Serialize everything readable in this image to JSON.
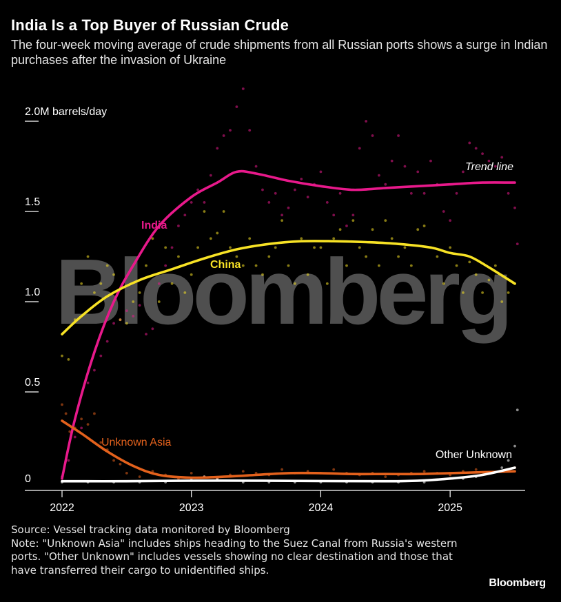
{
  "header": {
    "title": "India Is a Top Buyer of Russian Crude",
    "subtitle": "The four-week moving average of crude shipments from all Russian ports shows a surge in Indian purchases after the invasion of Ukraine"
  },
  "watermark": "Bloomberg",
  "footer": {
    "source": "Source: Vessel tracking data monitored by Bloomberg",
    "note": "Note: \"Unknown Asia\" includes ships heading to the Suez Canal from Russia's western ports. \"Other Unknown\" includes vessels showing no clear destination and those that have transferred their cargo to unidentified ships.",
    "brand": "Bloomberg"
  },
  "chart_data": {
    "type": "scatter",
    "unit": "M barrels/day",
    "xlim": [
      2022.0,
      2025.62
    ],
    "ylim": [
      0,
      2.0
    ],
    "x_ticks": [
      {
        "value": 2022,
        "label": "2022"
      },
      {
        "value": 2023,
        "label": "2023"
      },
      {
        "value": 2024,
        "label": "2024"
      },
      {
        "value": 2025,
        "label": "2025"
      }
    ],
    "y_ticks": [
      {
        "value": 0,
        "label": "0"
      },
      {
        "value": 0.5,
        "label": "0.5"
      },
      {
        "value": 1.0,
        "label": "1.0"
      },
      {
        "value": 1.5,
        "label": "1.5"
      },
      {
        "value": 2.0,
        "label": "2.0M barrels/day"
      }
    ],
    "trend_label": "Trend line",
    "series": [
      {
        "name": "India",
        "color": "#e8198b",
        "trend": [
          [
            2022.0,
            0.02
          ],
          [
            2022.1,
            0.35
          ],
          [
            2022.25,
            0.72
          ],
          [
            2022.4,
            1.0
          ],
          [
            2022.55,
            1.2
          ],
          [
            2022.75,
            1.42
          ],
          [
            2023.0,
            1.58
          ],
          [
            2023.2,
            1.66
          ],
          [
            2023.35,
            1.72
          ],
          [
            2023.5,
            1.71
          ],
          [
            2023.75,
            1.67
          ],
          [
            2024.0,
            1.64
          ],
          [
            2024.25,
            1.62
          ],
          [
            2024.5,
            1.63
          ],
          [
            2024.75,
            1.64
          ],
          [
            2025.0,
            1.65
          ],
          [
            2025.25,
            1.66
          ],
          [
            2025.5,
            1.66
          ]
        ],
        "points": [
          [
            2022.0,
            0.03
          ],
          [
            2022.05,
            0.12
          ],
          [
            2022.1,
            0.25
          ],
          [
            2022.15,
            0.3
          ],
          [
            2022.2,
            0.55
          ],
          [
            2022.25,
            0.62
          ],
          [
            2022.3,
            0.7
          ],
          [
            2022.35,
            0.78
          ],
          [
            2022.4,
            0.88
          ],
          [
            2022.45,
            0.9
          ],
          [
            2022.5,
            0.95
          ],
          [
            2022.55,
            0.92
          ],
          [
            2022.6,
            0.98
          ],
          [
            2022.65,
            0.82
          ],
          [
            2022.7,
            0.85
          ],
          [
            2022.75,
            1.1
          ],
          [
            2022.8,
            1.2
          ],
          [
            2022.85,
            1.3
          ],
          [
            2022.9,
            1.42
          ],
          [
            2022.95,
            1.48
          ],
          [
            2023.0,
            1.55
          ],
          [
            2023.05,
            1.62
          ],
          [
            2023.1,
            1.55
          ],
          [
            2023.15,
            1.7
          ],
          [
            2023.2,
            1.85
          ],
          [
            2023.25,
            1.92
          ],
          [
            2023.3,
            1.95
          ],
          [
            2023.35,
            2.08
          ],
          [
            2023.4,
            2.18
          ],
          [
            2023.45,
            1.95
          ],
          [
            2023.5,
            1.75
          ],
          [
            2023.55,
            1.62
          ],
          [
            2023.6,
            1.55
          ],
          [
            2023.65,
            1.6
          ],
          [
            2023.7,
            1.48
          ],
          [
            2023.75,
            1.52
          ],
          [
            2023.8,
            1.62
          ],
          [
            2023.85,
            1.68
          ],
          [
            2023.9,
            1.58
          ],
          [
            2023.95,
            1.65
          ],
          [
            2024.0,
            1.72
          ],
          [
            2024.05,
            1.55
          ],
          [
            2024.1,
            1.48
          ],
          [
            2024.15,
            1.6
          ],
          [
            2024.2,
            1.42
          ],
          [
            2024.25,
            1.48
          ],
          [
            2024.3,
            1.85
          ],
          [
            2024.35,
            2.0
          ],
          [
            2024.4,
            1.92
          ],
          [
            2024.45,
            1.7
          ],
          [
            2024.5,
            1.65
          ],
          [
            2024.55,
            1.78
          ],
          [
            2024.6,
            1.92
          ],
          [
            2024.65,
            1.75
          ],
          [
            2024.7,
            1.6
          ],
          [
            2024.75,
            1.72
          ],
          [
            2024.8,
            1.6
          ],
          [
            2024.85,
            1.78
          ],
          [
            2024.9,
            1.65
          ],
          [
            2024.95,
            1.5
          ],
          [
            2025.0,
            1.45
          ],
          [
            2025.05,
            1.6
          ],
          [
            2025.1,
            1.72
          ],
          [
            2025.15,
            1.88
          ],
          [
            2025.2,
            1.85
          ],
          [
            2025.25,
            1.82
          ],
          [
            2025.3,
            1.78
          ],
          [
            2025.35,
            1.75
          ],
          [
            2025.4,
            1.8
          ],
          [
            2025.45,
            1.6
          ],
          [
            2025.5,
            1.52
          ],
          [
            2025.52,
            1.32
          ]
        ]
      },
      {
        "name": "China",
        "color": "#f7e225",
        "trend": [
          [
            2022.0,
            0.82
          ],
          [
            2022.15,
            0.92
          ],
          [
            2022.35,
            1.03
          ],
          [
            2022.6,
            1.12
          ],
          [
            2022.85,
            1.18
          ],
          [
            2023.1,
            1.24
          ],
          [
            2023.35,
            1.29
          ],
          [
            2023.6,
            1.32
          ],
          [
            2023.85,
            1.335
          ],
          [
            2024.1,
            1.335
          ],
          [
            2024.35,
            1.33
          ],
          [
            2024.6,
            1.32
          ],
          [
            2024.85,
            1.3
          ],
          [
            2025.0,
            1.27
          ],
          [
            2025.15,
            1.25
          ],
          [
            2025.3,
            1.19
          ],
          [
            2025.5,
            1.1
          ]
        ],
        "points": [
          [
            2022.0,
            0.7
          ],
          [
            2022.05,
            0.68
          ],
          [
            2022.1,
            0.9
          ],
          [
            2022.15,
            1.1
          ],
          [
            2022.2,
            1.25
          ],
          [
            2022.25,
            1.05
          ],
          [
            2022.3,
            1.1
          ],
          [
            2022.35,
            1.2
          ],
          [
            2022.4,
            1.15
          ],
          [
            2022.45,
            0.9
          ],
          [
            2022.5,
            0.88
          ],
          [
            2022.55,
            1.0
          ],
          [
            2022.6,
            1.05
          ],
          [
            2022.65,
            1.2
          ],
          [
            2022.7,
            1.35
          ],
          [
            2022.75,
            1.0
          ],
          [
            2022.8,
            1.3
          ],
          [
            2022.85,
            1.1
          ],
          [
            2022.9,
            1.25
          ],
          [
            2022.95,
            1.05
          ],
          [
            2023.0,
            1.15
          ],
          [
            2023.05,
            1.3
          ],
          [
            2023.1,
            1.5
          ],
          [
            2023.15,
            1.35
          ],
          [
            2023.2,
            1.38
          ],
          [
            2023.25,
            1.5
          ],
          [
            2023.3,
            1.3
          ],
          [
            2023.35,
            1.25
          ],
          [
            2023.4,
            1.2
          ],
          [
            2023.45,
            1.35
          ],
          [
            2023.5,
            1.2
          ],
          [
            2023.55,
            1.15
          ],
          [
            2023.6,
            1.25
          ],
          [
            2023.65,
            1.3
          ],
          [
            2023.7,
            1.45
          ],
          [
            2023.75,
            1.2
          ],
          [
            2023.8,
            1.1
          ],
          [
            2023.85,
            1.35
          ],
          [
            2023.9,
            1.15
          ],
          [
            2023.95,
            1.3
          ],
          [
            2024.0,
            1.3
          ],
          [
            2024.05,
            1.1
          ],
          [
            2024.1,
            1.35
          ],
          [
            2024.15,
            1.4
          ],
          [
            2024.2,
            1.2
          ],
          [
            2024.25,
            1.45
          ],
          [
            2024.3,
            1.3
          ],
          [
            2024.35,
            1.25
          ],
          [
            2024.4,
            1.4
          ],
          [
            2024.45,
            1.2
          ],
          [
            2024.5,
            1.45
          ],
          [
            2024.55,
            1.35
          ],
          [
            2024.6,
            1.25
          ],
          [
            2024.65,
            1.3
          ],
          [
            2024.7,
            1.2
          ],
          [
            2024.75,
            1.4
          ],
          [
            2024.8,
            1.42
          ],
          [
            2024.85,
            1.3
          ],
          [
            2024.9,
            1.25
          ],
          [
            2024.95,
            1.1
          ],
          [
            2025.0,
            1.3
          ],
          [
            2025.05,
            1.2
          ],
          [
            2025.1,
            1.05
          ],
          [
            2025.15,
            1.22
          ],
          [
            2025.2,
            1.15
          ],
          [
            2025.25,
            1.05
          ],
          [
            2025.3,
            1.12
          ],
          [
            2025.35,
            1.2
          ],
          [
            2025.4,
            1.0
          ],
          [
            2025.45,
            1.05
          ],
          [
            2025.5,
            1.1
          ]
        ]
      },
      {
        "name": "Unknown Asia",
        "color": "#e3611c",
        "trend": [
          [
            2022.0,
            0.34
          ],
          [
            2022.15,
            0.27
          ],
          [
            2022.35,
            0.17
          ],
          [
            2022.55,
            0.09
          ],
          [
            2022.75,
            0.04
          ],
          [
            2023.0,
            0.025
          ],
          [
            2023.25,
            0.03
          ],
          [
            2023.5,
            0.04
          ],
          [
            2023.75,
            0.05
          ],
          [
            2024.0,
            0.05
          ],
          [
            2024.25,
            0.045
          ],
          [
            2024.5,
            0.045
          ],
          [
            2024.75,
            0.045
          ],
          [
            2025.0,
            0.05
          ],
          [
            2025.25,
            0.055
          ],
          [
            2025.5,
            0.06
          ]
        ],
        "points": [
          [
            2022.0,
            0.43
          ],
          [
            2022.03,
            0.38
          ],
          [
            2022.06,
            0.28
          ],
          [
            2022.1,
            0.3
          ],
          [
            2022.15,
            0.35
          ],
          [
            2022.2,
            0.32
          ],
          [
            2022.25,
            0.38
          ],
          [
            2022.3,
            0.22
          ],
          [
            2022.35,
            0.18
          ],
          [
            2022.4,
            0.12
          ],
          [
            2022.45,
            0.1
          ],
          [
            2022.5,
            0.05
          ],
          [
            2022.6,
            0.03
          ],
          [
            2022.7,
            0.06
          ],
          [
            2022.8,
            0.04
          ],
          [
            2022.9,
            0.02
          ],
          [
            2023.0,
            0.05
          ],
          [
            2023.1,
            0.03
          ],
          [
            2023.2,
            0.02
          ],
          [
            2023.3,
            0.04
          ],
          [
            2023.4,
            0.06
          ],
          [
            2023.5,
            0.05
          ],
          [
            2023.6,
            0.04
          ],
          [
            2023.7,
            0.07
          ],
          [
            2023.8,
            0.05
          ],
          [
            2023.9,
            0.06
          ],
          [
            2024.0,
            0.05
          ],
          [
            2024.1,
            0.07
          ],
          [
            2024.2,
            0.05
          ],
          [
            2024.3,
            0.04
          ],
          [
            2024.4,
            0.05
          ],
          [
            2024.5,
            0.03
          ],
          [
            2024.6,
            0.04
          ],
          [
            2024.7,
            0.05
          ],
          [
            2024.8,
            0.06
          ],
          [
            2024.9,
            0.05
          ],
          [
            2025.0,
            0.04
          ],
          [
            2025.1,
            0.06
          ],
          [
            2025.2,
            0.07
          ],
          [
            2025.3,
            0.05
          ],
          [
            2025.4,
            0.06
          ],
          [
            2025.5,
            0.08
          ]
        ]
      },
      {
        "name": "Other Unknown",
        "color": "#ffffff",
        "trend": [
          [
            2022.0,
            0.005
          ],
          [
            2022.5,
            0.005
          ],
          [
            2023.0,
            0.008
          ],
          [
            2023.5,
            0.008
          ],
          [
            2024.0,
            0.006
          ],
          [
            2024.5,
            0.005
          ],
          [
            2024.75,
            0.008
          ],
          [
            2025.0,
            0.02
          ],
          [
            2025.25,
            0.04
          ],
          [
            2025.5,
            0.08
          ]
        ],
        "points": [
          [
            2022.0,
            0.0
          ],
          [
            2022.2,
            0.0
          ],
          [
            2022.4,
            0.0
          ],
          [
            2022.6,
            0.0
          ],
          [
            2022.8,
            0.0
          ],
          [
            2023.0,
            0.02
          ],
          [
            2023.1,
            0.03
          ],
          [
            2023.2,
            0.02
          ],
          [
            2023.4,
            0.0
          ],
          [
            2023.6,
            0.0
          ],
          [
            2023.8,
            0.0
          ],
          [
            2024.0,
            0.0
          ],
          [
            2024.2,
            0.0
          ],
          [
            2024.4,
            0.0
          ],
          [
            2024.6,
            0.0
          ],
          [
            2024.8,
            0.0
          ],
          [
            2025.0,
            0.02
          ],
          [
            2025.1,
            0.02
          ],
          [
            2025.2,
            0.03
          ],
          [
            2025.3,
            0.05
          ],
          [
            2025.4,
            0.08
          ],
          [
            2025.45,
            0.12
          ],
          [
            2025.5,
            0.2
          ],
          [
            2025.52,
            0.4
          ]
        ]
      }
    ]
  }
}
